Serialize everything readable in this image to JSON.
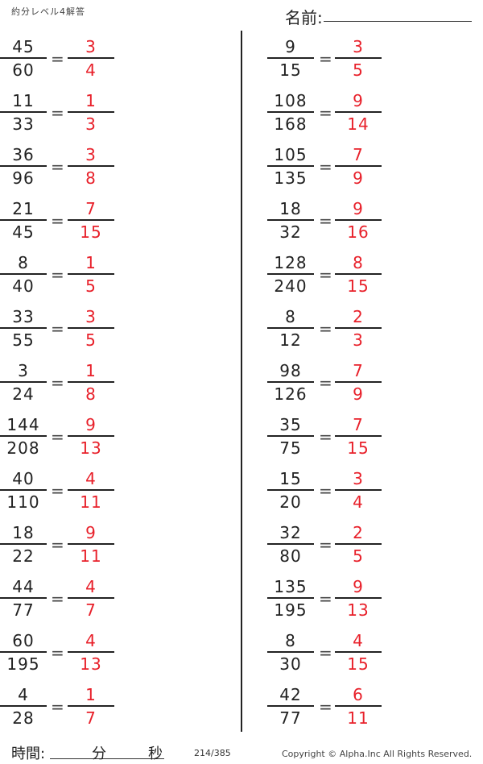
{
  "header": {
    "title": "約分レベル4解答",
    "name_label": "名前:"
  },
  "colors": {
    "answer": "#e8202a",
    "problem": "#222222"
  },
  "problems": {
    "left": [
      {
        "num": "45",
        "den": "60",
        "ans_num": "3",
        "ans_den": "4"
      },
      {
        "num": "11",
        "den": "33",
        "ans_num": "1",
        "ans_den": "3"
      },
      {
        "num": "36",
        "den": "96",
        "ans_num": "3",
        "ans_den": "8"
      },
      {
        "num": "21",
        "den": "45",
        "ans_num": "7",
        "ans_den": "15"
      },
      {
        "num": "8",
        "den": "40",
        "ans_num": "1",
        "ans_den": "5"
      },
      {
        "num": "33",
        "den": "55",
        "ans_num": "3",
        "ans_den": "5"
      },
      {
        "num": "3",
        "den": "24",
        "ans_num": "1",
        "ans_den": "8"
      },
      {
        "num": "144",
        "den": "208",
        "ans_num": "9",
        "ans_den": "13"
      },
      {
        "num": "40",
        "den": "110",
        "ans_num": "4",
        "ans_den": "11"
      },
      {
        "num": "18",
        "den": "22",
        "ans_num": "9",
        "ans_den": "11"
      },
      {
        "num": "44",
        "den": "77",
        "ans_num": "4",
        "ans_den": "7"
      },
      {
        "num": "60",
        "den": "195",
        "ans_num": "4",
        "ans_den": "13"
      },
      {
        "num": "4",
        "den": "28",
        "ans_num": "1",
        "ans_den": "7"
      }
    ],
    "right": [
      {
        "num": "9",
        "den": "15",
        "ans_num": "3",
        "ans_den": "5"
      },
      {
        "num": "108",
        "den": "168",
        "ans_num": "9",
        "ans_den": "14"
      },
      {
        "num": "105",
        "den": "135",
        "ans_num": "7",
        "ans_den": "9"
      },
      {
        "num": "18",
        "den": "32",
        "ans_num": "9",
        "ans_den": "16"
      },
      {
        "num": "128",
        "den": "240",
        "ans_num": "8",
        "ans_den": "15"
      },
      {
        "num": "8",
        "den": "12",
        "ans_num": "2",
        "ans_den": "3"
      },
      {
        "num": "98",
        "den": "126",
        "ans_num": "7",
        "ans_den": "9"
      },
      {
        "num": "35",
        "den": "75",
        "ans_num": "7",
        "ans_den": "15"
      },
      {
        "num": "15",
        "den": "20",
        "ans_num": "3",
        "ans_den": "4"
      },
      {
        "num": "32",
        "den": "80",
        "ans_num": "2",
        "ans_den": "5"
      },
      {
        "num": "135",
        "den": "195",
        "ans_num": "9",
        "ans_den": "13"
      },
      {
        "num": "8",
        "den": "30",
        "ans_num": "4",
        "ans_den": "15"
      },
      {
        "num": "42",
        "den": "77",
        "ans_num": "6",
        "ans_den": "11"
      }
    ],
    "equals": "="
  },
  "footer": {
    "time_label": "時間:",
    "minutes_label": "分",
    "seconds_label": "秒",
    "page": "214/385",
    "copyright": "Copyright ©  Alpha.Inc All Rights Reserved."
  }
}
